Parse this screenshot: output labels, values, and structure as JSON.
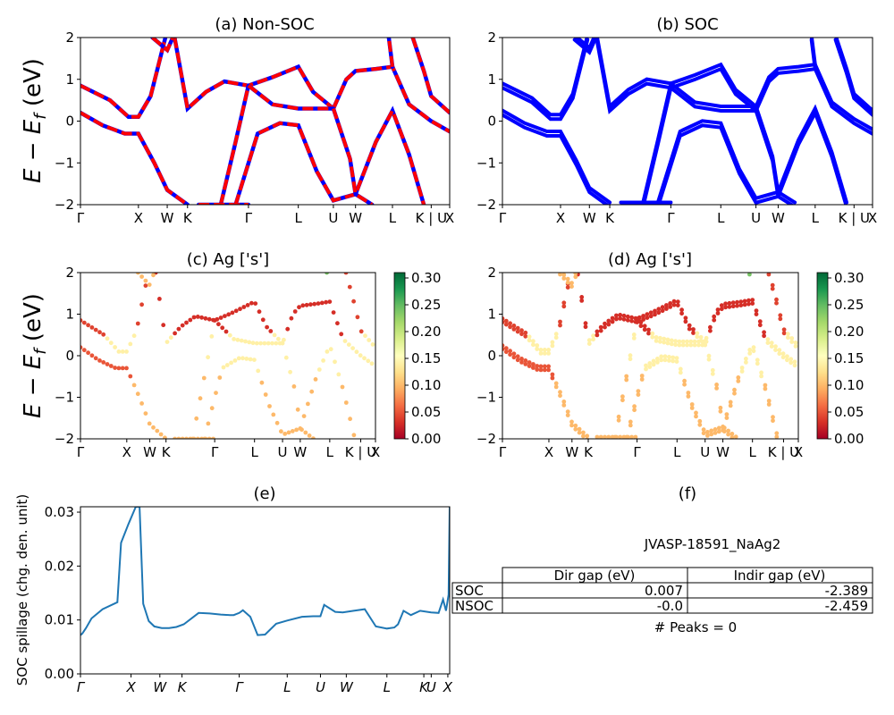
{
  "chart_data": [
    {
      "panel": "a",
      "type": "line",
      "title": "(a) Non-SOC",
      "ylabel": "E − E_f (eV)",
      "ylim": [
        -2,
        2
      ],
      "xlim": [
        0,
        10
      ],
      "yticks": [
        "2",
        "1",
        "0",
        "−1",
        "−2"
      ],
      "kpath": [
        {
          "label": "Γ",
          "x": 0.0
        },
        {
          "label": "X",
          "x": 1.57
        },
        {
          "label": "W",
          "x": 2.35
        },
        {
          "label": "K",
          "x": 2.9
        },
        {
          "label": "Γ",
          "x": 4.55
        },
        {
          "label": "L",
          "x": 5.9
        },
        {
          "label": "U",
          "x": 6.85
        },
        {
          "label": "W",
          "x": 7.45
        },
        {
          "label": "L",
          "x": 8.45
        },
        {
          "label": "K | U",
          "x": 9.5
        },
        {
          "label": "X",
          "x": 10.0
        }
      ],
      "series": [
        {
          "values": [
            [
              0,
              0.2
            ],
            [
              0.6,
              -0.1
            ],
            [
              1.2,
              -0.3
            ],
            [
              1.57,
              -0.3
            ],
            [
              2.0,
              -1.0
            ],
            [
              2.35,
              -1.65
            ],
            [
              2.9,
              -2.0
            ]
          ]
        },
        {
          "values": [
            [
              0,
              0.85
            ],
            [
              0.8,
              0.5
            ],
            [
              1.3,
              0.1
            ],
            [
              1.57,
              0.1
            ],
            [
              1.9,
              0.6
            ],
            [
              2.3,
              2.0
            ]
          ]
        },
        {
          "values": [
            [
              2.55,
              2.0
            ],
            [
              2.9,
              0.3
            ],
            [
              3.4,
              0.7
            ],
            [
              3.9,
              0.95
            ],
            [
              4.55,
              0.85
            ],
            [
              5.2,
              1.05
            ],
            [
              5.9,
              1.3
            ],
            [
              6.3,
              0.7
            ],
            [
              6.85,
              0.3
            ]
          ]
        },
        {
          "values": [
            [
              3.8,
              -2.0
            ],
            [
              4.2,
              -0.5
            ],
            [
              4.55,
              0.85
            ]
          ]
        },
        {
          "values": [
            [
              3.2,
              -2.0
            ],
            [
              4.55,
              -2.0
            ]
          ]
        },
        {
          "values": [
            [
              4.2,
              -2.0
            ],
            [
              4.8,
              -0.3
            ],
            [
              5.4,
              -0.05
            ],
            [
              5.9,
              -0.1
            ],
            [
              6.4,
              -1.2
            ],
            [
              6.85,
              -1.9
            ],
            [
              7.45,
              -1.75
            ],
            [
              8.0,
              -0.5
            ],
            [
              8.45,
              0.25
            ],
            [
              8.9,
              -0.8
            ],
            [
              9.3,
              -2.0
            ]
          ]
        },
        {
          "values": [
            [
              4.55,
              0.85
            ],
            [
              5.2,
              0.4
            ],
            [
              5.9,
              0.3
            ],
            [
              6.85,
              0.3
            ],
            [
              7.2,
              1.0
            ],
            [
              7.45,
              1.2
            ],
            [
              8.0,
              1.25
            ],
            [
              8.45,
              1.3
            ],
            [
              8.9,
              0.4
            ],
            [
              9.5,
              0.0
            ],
            [
              10.0,
              -0.25
            ]
          ]
        },
        {
          "values": [
            [
              6.85,
              0.3
            ],
            [
              7.3,
              -0.9
            ],
            [
              7.45,
              -1.75
            ],
            [
              7.9,
              -2.0
            ]
          ]
        },
        {
          "values": [
            [
              8.45,
              1.3
            ],
            [
              8.35,
              2.0
            ]
          ]
        },
        {
          "values": [
            [
              9.0,
              2.0
            ],
            [
              9.3,
              1.2
            ],
            [
              9.5,
              0.6
            ],
            [
              10.0,
              0.2
            ]
          ]
        },
        {
          "values": [
            [
              1.95,
              2.0
            ],
            [
              2.35,
              1.7
            ],
            [
              2.5,
              2.0
            ]
          ]
        }
      ],
      "style": {
        "soc_color": "#0000ff",
        "nonsoc_color": "#ff0000",
        "nonsoc_dash": true
      }
    },
    {
      "panel": "b",
      "type": "line",
      "title": "(b) SOC",
      "ylim": [
        -2,
        2
      ],
      "yticks": [
        "2",
        "1",
        "0",
        "−1",
        "−2"
      ],
      "kpath_labels": [
        "Γ",
        "X",
        "W",
        "K",
        "Γ",
        "L",
        "U",
        "W",
        "L",
        "K | U",
        "X"
      ],
      "split_bands": true,
      "color": "#0000ff"
    },
    {
      "panel": "c",
      "type": "scatter",
      "title": "(c)  Ag ['s']",
      "ylabel": "E − E_f (eV)",
      "ylim": [
        -2,
        2
      ],
      "yticks": [
        "2",
        "1",
        "0",
        "−1",
        "−2"
      ],
      "kpath_labels": [
        "Γ",
        "X",
        "W",
        "K",
        "Γ",
        "L",
        "U",
        "W",
        "L",
        "K | U",
        "X"
      ],
      "colorbar": {
        "ticks": [
          "0.30",
          "0.25",
          "0.20",
          "0.15",
          "0.10",
          "0.05",
          "0.00"
        ],
        "range": [
          0,
          0.31
        ],
        "colormap": "RdYlGn"
      }
    },
    {
      "panel": "d",
      "type": "scatter",
      "title": "(d) Ag ['s']",
      "ylim": [
        -2,
        2
      ],
      "yticks": [
        "2",
        "1",
        "0",
        "−1",
        "−2"
      ],
      "kpath_labels": [
        "Γ",
        "X",
        "W",
        "K",
        "Γ",
        "L",
        "U",
        "W",
        "L",
        "K | U",
        "X"
      ],
      "colorbar": {
        "ticks": [
          "0.30",
          "0.25",
          "0.20",
          "0.15",
          "0.10",
          "0.05",
          "0.00"
        ],
        "range": [
          0,
          0.31
        ],
        "colormap": "RdYlGn"
      }
    },
    {
      "panel": "e",
      "type": "line",
      "title": "(e)",
      "ylabel": "SOC spillage (chg. den. unit)",
      "ylim": [
        0,
        0.031
      ],
      "yticks": [
        "0.03",
        "0.02",
        "0.01",
        "0.00"
      ],
      "xticks": [
        "Γ",
        "X",
        "W",
        "K",
        "Γ",
        "L",
        "U",
        "W",
        "L",
        "K",
        "U",
        "X"
      ],
      "color": "#1f77b4",
      "x": [
        0,
        0.05,
        0.15,
        0.3,
        0.6,
        1.0,
        1.1,
        1.3,
        1.5,
        1.6,
        1.7,
        1.85,
        2.0,
        2.2,
        2.4,
        2.6,
        2.8,
        3.2,
        3.5,
        3.8,
        4.05,
        4.15,
        4.3,
        4.4,
        4.6,
        4.8,
        5.0,
        5.3,
        5.6,
        6.0,
        6.3,
        6.5,
        6.6,
        6.9,
        7.1,
        7.4,
        7.7,
        8.0,
        8.3,
        8.5,
        8.6,
        8.75,
        8.95,
        9.2,
        9.5,
        9.7,
        9.82,
        9.9,
        9.97,
        10.0
      ],
      "values": [
        0.0072,
        0.0075,
        0.0085,
        0.0103,
        0.012,
        0.0133,
        0.0243,
        0.0278,
        0.031,
        0.031,
        0.013,
        0.0098,
        0.0088,
        0.0085,
        0.0085,
        0.0087,
        0.0092,
        0.0113,
        0.0112,
        0.011,
        0.0109,
        0.0109,
        0.0113,
        0.0118,
        0.0106,
        0.0072,
        0.0073,
        0.0093,
        0.0099,
        0.0106,
        0.0107,
        0.0107,
        0.0128,
        0.0115,
        0.0114,
        0.0117,
        0.012,
        0.0088,
        0.0084,
        0.0086,
        0.0092,
        0.0117,
        0.0109,
        0.0117,
        0.0114,
        0.0113,
        0.0138,
        0.0117,
        0.0147,
        0.031
      ],
      "xlim": [
        0,
        10
      ]
    },
    {
      "panel": "f",
      "type": "table",
      "title": "(f)",
      "caption": "JVASP-18591_NaAg2",
      "columns": [
        "Dir gap (eV)",
        "Indir gap (eV)"
      ],
      "rows": [
        {
          "label": "SOC",
          "values": [
            "0.007",
            "-2.389"
          ]
        },
        {
          "label": "NSOC",
          "values": [
            "-0.0",
            "-2.459"
          ]
        }
      ],
      "footer": "# Peaks = 0"
    }
  ]
}
